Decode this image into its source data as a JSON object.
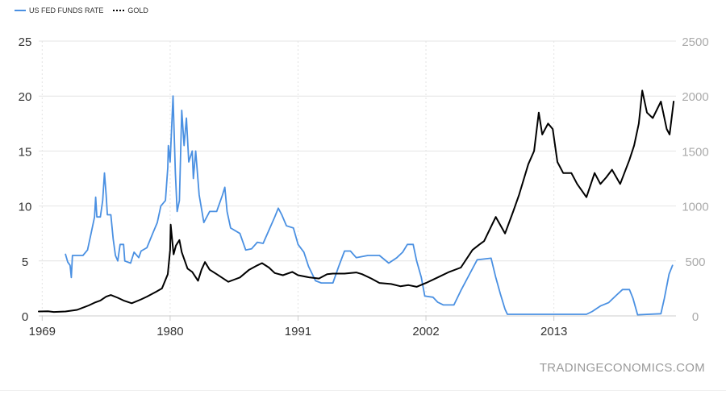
{
  "chart_data": {
    "type": "line",
    "legend_position": "top-left",
    "grid": true,
    "x_ticks": [
      "1969",
      "1980",
      "1991",
      "2002",
      "2013"
    ],
    "xlim": [
      1968.7,
      2023.5
    ],
    "y_left": {
      "lim": [
        0,
        25
      ],
      "ticks": [
        "0",
        "5",
        "10",
        "15",
        "20",
        "25"
      ]
    },
    "y_right": {
      "lim": [
        0,
        2500
      ],
      "ticks": [
        "0",
        "500",
        "1000",
        "1500",
        "2000",
        "2500"
      ]
    },
    "series": [
      {
        "name": "US FED FUNDS RATE",
        "axis": "left",
        "color": "#4a90e2",
        "points": [
          [
            1971.0,
            5.6
          ],
          [
            1971.2,
            4.9
          ],
          [
            1971.4,
            4.6
          ],
          [
            1971.5,
            3.5
          ],
          [
            1971.6,
            5.5
          ],
          [
            1972.0,
            5.5
          ],
          [
            1972.5,
            5.5
          ],
          [
            1972.9,
            6.0
          ],
          [
            1973.2,
            7.5
          ],
          [
            1973.5,
            9.0
          ],
          [
            1973.6,
            10.8
          ],
          [
            1973.7,
            9.0
          ],
          [
            1974.0,
            9.0
          ],
          [
            1974.2,
            10.5
          ],
          [
            1974.35,
            13.0
          ],
          [
            1974.5,
            11.0
          ],
          [
            1974.6,
            9.2
          ],
          [
            1974.9,
            9.2
          ],
          [
            1975.1,
            7.0
          ],
          [
            1975.3,
            5.5
          ],
          [
            1975.5,
            5.0
          ],
          [
            1975.7,
            6.5
          ],
          [
            1976.0,
            6.5
          ],
          [
            1976.1,
            5.0
          ],
          [
            1976.6,
            4.8
          ],
          [
            1976.9,
            5.8
          ],
          [
            1977.3,
            5.3
          ],
          [
            1977.5,
            5.9
          ],
          [
            1978.0,
            6.2
          ],
          [
            1978.5,
            7.5
          ],
          [
            1978.9,
            8.5
          ],
          [
            1979.2,
            10.0
          ],
          [
            1979.6,
            10.5
          ],
          [
            1979.8,
            13.5
          ],
          [
            1979.85,
            15.5
          ],
          [
            1980.0,
            14.0
          ],
          [
            1980.25,
            20.0
          ],
          [
            1980.45,
            13.0
          ],
          [
            1980.6,
            9.5
          ],
          [
            1980.8,
            10.5
          ],
          [
            1981.0,
            18.7
          ],
          [
            1981.2,
            15.5
          ],
          [
            1981.4,
            18.0
          ],
          [
            1981.6,
            14.0
          ],
          [
            1981.9,
            15.0
          ],
          [
            1982.0,
            12.5
          ],
          [
            1982.2,
            15.0
          ],
          [
            1982.5,
            11.0
          ],
          [
            1982.9,
            8.5
          ],
          [
            1983.4,
            9.5
          ],
          [
            1984.0,
            9.5
          ],
          [
            1984.5,
            11.0
          ],
          [
            1984.7,
            11.7
          ],
          [
            1984.9,
            9.5
          ],
          [
            1985.2,
            8.0
          ],
          [
            1986.0,
            7.5
          ],
          [
            1986.5,
            6.0
          ],
          [
            1987.0,
            6.1
          ],
          [
            1987.5,
            6.7
          ],
          [
            1988.0,
            6.6
          ],
          [
            1988.5,
            7.8
          ],
          [
            1989.0,
            9.0
          ],
          [
            1989.3,
            9.8
          ],
          [
            1989.6,
            9.2
          ],
          [
            1990.0,
            8.2
          ],
          [
            1990.6,
            8.0
          ],
          [
            1991.0,
            6.5
          ],
          [
            1991.5,
            5.8
          ],
          [
            1991.9,
            4.5
          ],
          [
            1992.5,
            3.2
          ],
          [
            1993.0,
            3.0
          ],
          [
            1994.0,
            3.0
          ],
          [
            1994.5,
            4.5
          ],
          [
            1995.0,
            5.9
          ],
          [
            1995.5,
            5.9
          ],
          [
            1996.0,
            5.3
          ],
          [
            1997.0,
            5.5
          ],
          [
            1998.0,
            5.5
          ],
          [
            1998.8,
            4.8
          ],
          [
            1999.5,
            5.3
          ],
          [
            2000.0,
            5.8
          ],
          [
            2000.4,
            6.5
          ],
          [
            2000.9,
            6.5
          ],
          [
            2001.2,
            5.0
          ],
          [
            2001.6,
            3.5
          ],
          [
            2001.9,
            1.8
          ],
          [
            2002.6,
            1.7
          ],
          [
            2003.0,
            1.25
          ],
          [
            2003.5,
            1.0
          ],
          [
            2004.4,
            1.0
          ],
          [
            2005.0,
            2.3
          ],
          [
            2005.7,
            3.7
          ],
          [
            2006.4,
            5.1
          ],
          [
            2007.6,
            5.25
          ],
          [
            2008.0,
            3.5
          ],
          [
            2008.4,
            2.0
          ],
          [
            2008.8,
            0.6
          ],
          [
            2009.0,
            0.15
          ],
          [
            2015.8,
            0.15
          ],
          [
            2016.3,
            0.4
          ],
          [
            2017.0,
            0.9
          ],
          [
            2017.7,
            1.2
          ],
          [
            2018.3,
            1.8
          ],
          [
            2018.9,
            2.4
          ],
          [
            2019.5,
            2.4
          ],
          [
            2019.8,
            1.6
          ],
          [
            2020.2,
            0.1
          ],
          [
            2022.2,
            0.2
          ],
          [
            2022.5,
            1.6
          ],
          [
            2022.9,
            3.8
          ],
          [
            2023.2,
            4.6
          ]
        ]
      },
      {
        "name": "GOLD",
        "axis": "right",
        "color": "#000000",
        "points": [
          [
            1968.7,
            40
          ],
          [
            1969.5,
            42
          ],
          [
            1970.0,
            36
          ],
          [
            1971.0,
            40
          ],
          [
            1972.0,
            55
          ],
          [
            1973.0,
            95
          ],
          [
            1973.5,
            120
          ],
          [
            1974.0,
            140
          ],
          [
            1974.5,
            175
          ],
          [
            1974.9,
            190
          ],
          [
            1975.5,
            165
          ],
          [
            1976.0,
            140
          ],
          [
            1976.7,
            115
          ],
          [
            1977.5,
            150
          ],
          [
            1978.0,
            175
          ],
          [
            1978.8,
            220
          ],
          [
            1979.3,
            250
          ],
          [
            1979.8,
            380
          ],
          [
            1980.0,
            600
          ],
          [
            1980.05,
            830
          ],
          [
            1980.3,
            560
          ],
          [
            1980.5,
            640
          ],
          [
            1980.8,
            690
          ],
          [
            1981.0,
            580
          ],
          [
            1981.5,
            430
          ],
          [
            1981.9,
            400
          ],
          [
            1982.4,
            320
          ],
          [
            1982.7,
            420
          ],
          [
            1983.0,
            490
          ],
          [
            1983.4,
            420
          ],
          [
            1984.0,
            380
          ],
          [
            1985.0,
            310
          ],
          [
            1985.5,
            330
          ],
          [
            1986.0,
            350
          ],
          [
            1986.8,
            420
          ],
          [
            1987.5,
            460
          ],
          [
            1987.9,
            480
          ],
          [
            1988.5,
            440
          ],
          [
            1989.0,
            390
          ],
          [
            1989.7,
            370
          ],
          [
            1990.5,
            400
          ],
          [
            1991.0,
            370
          ],
          [
            1992.0,
            350
          ],
          [
            1992.8,
            340
          ],
          [
            1993.5,
            380
          ],
          [
            1994.0,
            385
          ],
          [
            1995.0,
            385
          ],
          [
            1996.0,
            395
          ],
          [
            1996.5,
            380
          ],
          [
            1997.3,
            340
          ],
          [
            1998.0,
            300
          ],
          [
            1999.0,
            290
          ],
          [
            1999.8,
            270
          ],
          [
            2000.5,
            280
          ],
          [
            2001.2,
            265
          ],
          [
            2002.0,
            300
          ],
          [
            2003.0,
            350
          ],
          [
            2004.0,
            400
          ],
          [
            2005.0,
            440
          ],
          [
            2006.0,
            600
          ],
          [
            2006.6,
            650
          ],
          [
            2007.0,
            680
          ],
          [
            2008.0,
            900
          ],
          [
            2008.8,
            750
          ],
          [
            2009.5,
            950
          ],
          [
            2010.0,
            1100
          ],
          [
            2010.8,
            1380
          ],
          [
            2011.3,
            1500
          ],
          [
            2011.7,
            1850
          ],
          [
            2012.0,
            1650
          ],
          [
            2012.5,
            1750
          ],
          [
            2012.9,
            1700
          ],
          [
            2013.3,
            1400
          ],
          [
            2013.8,
            1300
          ],
          [
            2014.5,
            1300
          ],
          [
            2015.0,
            1200
          ],
          [
            2015.8,
            1080
          ],
          [
            2016.5,
            1300
          ],
          [
            2017.0,
            1200
          ],
          [
            2017.5,
            1260
          ],
          [
            2018.0,
            1330
          ],
          [
            2018.7,
            1200
          ],
          [
            2019.5,
            1420
          ],
          [
            2019.9,
            1550
          ],
          [
            2020.3,
            1750
          ],
          [
            2020.6,
            2050
          ],
          [
            2021.0,
            1850
          ],
          [
            2021.5,
            1800
          ],
          [
            2022.2,
            1950
          ],
          [
            2022.7,
            1700
          ],
          [
            2022.95,
            1650
          ],
          [
            2023.3,
            1950
          ]
        ]
      }
    ]
  },
  "watermark": "TRADINGECONOMICS.COM"
}
